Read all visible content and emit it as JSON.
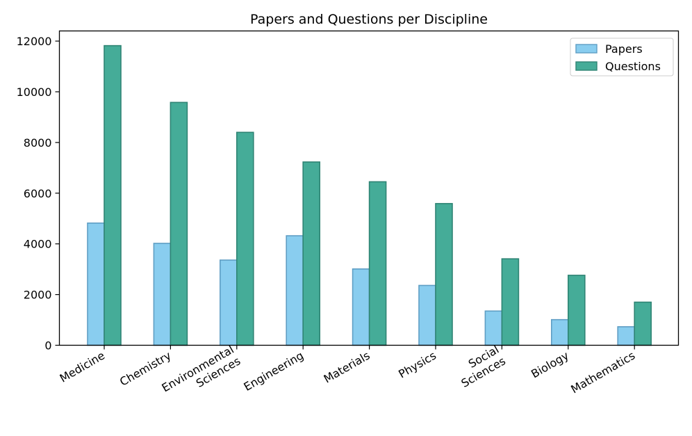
{
  "chart_data": {
    "type": "bar",
    "title": "Papers and Questions per Discipline",
    "xlabel": "",
    "ylabel": "",
    "categories": [
      [
        "Medicine"
      ],
      [
        "Chemistry"
      ],
      [
        "Environmental",
        "Sciences"
      ],
      [
        "Engineering"
      ],
      [
        "Materials"
      ],
      [
        "Physics"
      ],
      [
        "Social",
        "Sciences"
      ],
      [
        "Biology"
      ],
      [
        "Mathematics"
      ]
    ],
    "series": [
      {
        "name": "Papers",
        "color": "#89CDEF",
        "edge_color": "#5F9EC4",
        "values": [
          4820,
          4020,
          3360,
          4320,
          3010,
          2360,
          1350,
          1010,
          730
        ]
      },
      {
        "name": "Questions",
        "color": "#45AC98",
        "edge_color": "#2F8474",
        "values": [
          11820,
          9580,
          8400,
          7230,
          6450,
          5590,
          3410,
          2760,
          1700
        ]
      }
    ],
    "ylim": [
      0,
      12400
    ],
    "yticks": [
      0,
      2000,
      4000,
      6000,
      8000,
      10000,
      12000
    ],
    "grid": false,
    "legend_position": "top-right"
  }
}
